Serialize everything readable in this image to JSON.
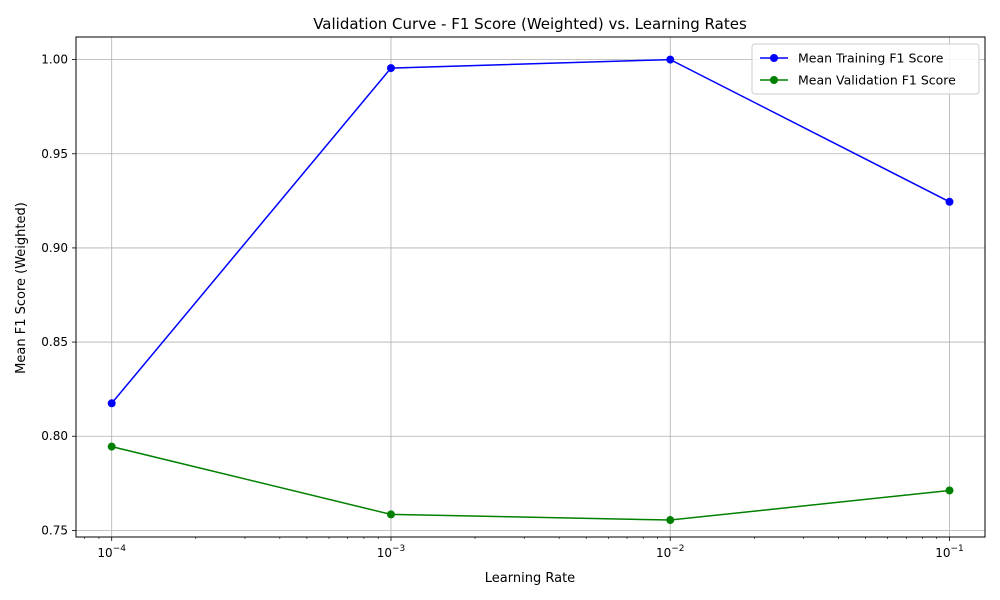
{
  "chart_data": {
    "type": "line",
    "title": "Validation Curve - F1 Score (Weighted) vs. Learning Rates",
    "xlabel": "Learning Rate",
    "ylabel": "Mean F1 Score (Weighted)",
    "xscale": "log",
    "x": [
      0.0001,
      0.001,
      0.01,
      0.1
    ],
    "x_tick_labels": [
      {
        "base": "10",
        "exp": "−4"
      },
      {
        "base": "10",
        "exp": "−3"
      },
      {
        "base": "10",
        "exp": "−2"
      },
      {
        "base": "10",
        "exp": "−1"
      }
    ],
    "y_ticks": [
      0.75,
      0.8,
      0.85,
      0.9,
      0.95,
      1.0
    ],
    "y_tick_labels": [
      "0.75",
      "0.80",
      "0.85",
      "0.90",
      "0.95",
      "1.00"
    ],
    "ylim": [
      0.7465,
      1.012
    ],
    "xlim": [
      7.45e-05,
      0.134
    ],
    "grid": true,
    "legend_position": "top-right",
    "series": [
      {
        "name": "Mean Training F1 Score",
        "color": "#0000ff",
        "values": [
          0.8175,
          0.9955,
          1.0,
          0.9245
        ]
      },
      {
        "name": "Mean Validation F1 Score",
        "color": "#008000",
        "values": [
          0.7945,
          0.7585,
          0.7555,
          0.7712
        ]
      }
    ]
  }
}
